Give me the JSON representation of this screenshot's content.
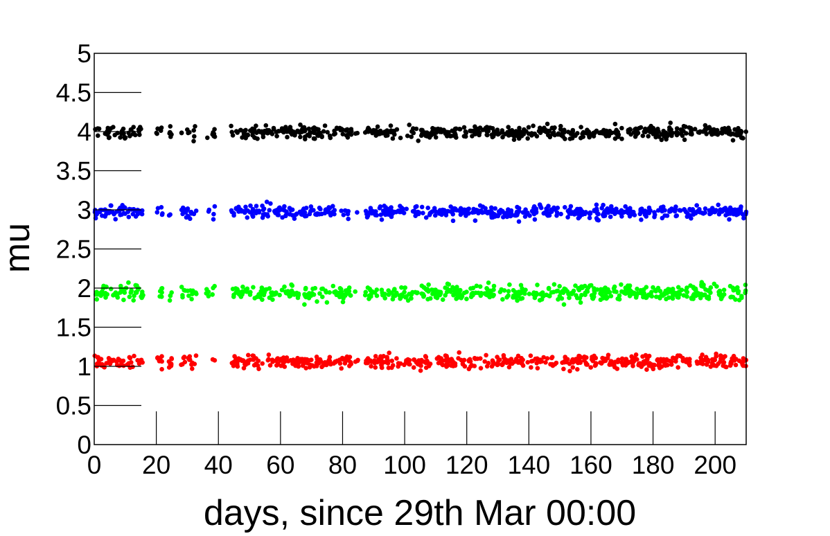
{
  "chart_data": {
    "type": "scatter",
    "xlabel": "days, since 29th Mar 00:00",
    "ylabel": "mu",
    "xlim": [
      0,
      210
    ],
    "ylim": [
      0,
      5
    ],
    "x_ticks": [
      0,
      20,
      40,
      60,
      80,
      100,
      120,
      140,
      160,
      180,
      200
    ],
    "x_tick_labels": [
      "0",
      "20",
      "40",
      "60",
      "80",
      "100",
      "120",
      "140",
      "160",
      "180",
      "200"
    ],
    "y_ticks": [
      0,
      0.5,
      1,
      1.5,
      2,
      2.5,
      3,
      3.5,
      4,
      4.5,
      5
    ],
    "y_tick_labels": [
      "0",
      "0.5",
      "1",
      "1.5",
      "2",
      "2.5",
      "3",
      "3.5",
      "4",
      "4.5",
      "5"
    ],
    "grid": false,
    "legend": "none",
    "data_gaps_days": [
      [
        16,
        20
      ],
      [
        22,
        24
      ],
      [
        25,
        28
      ],
      [
        33,
        36
      ],
      [
        37,
        38
      ],
      [
        39,
        44
      ],
      [
        83,
        84
      ],
      [
        85,
        87
      ]
    ],
    "series": [
      {
        "color": "#ff0000",
        "level": 1.06,
        "spread": 0.04,
        "count": 620
      },
      {
        "color": "#00ff00",
        "level": 1.94,
        "spread": 0.05,
        "count": 620
      },
      {
        "color": "#0000ff",
        "level": 2.97,
        "spread": 0.04,
        "count": 620
      },
      {
        "color": "#000000",
        "level": 3.99,
        "spread": 0.04,
        "count": 620
      }
    ]
  }
}
